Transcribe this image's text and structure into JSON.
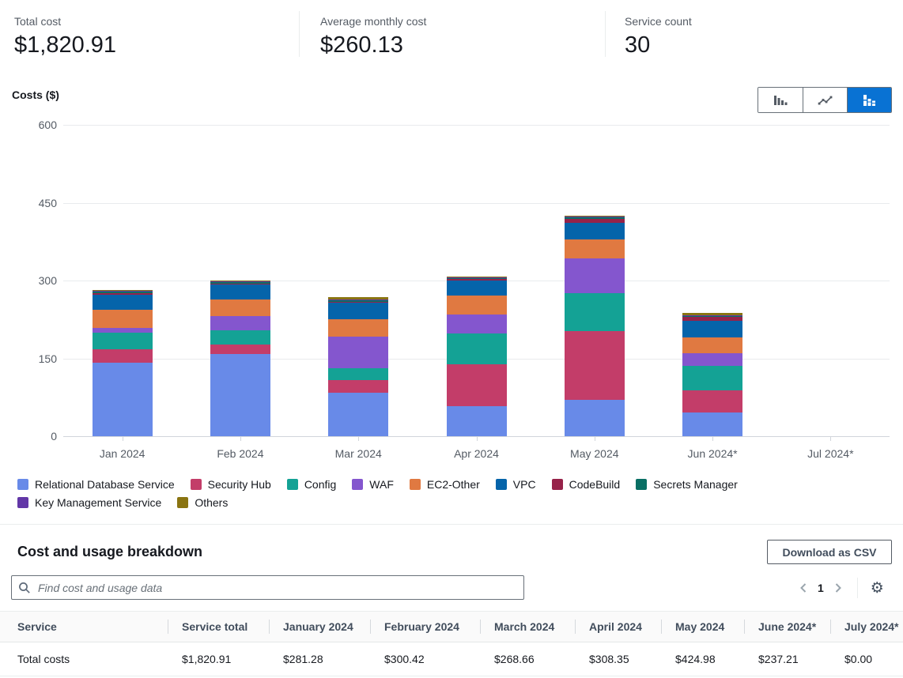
{
  "kpis": {
    "total": {
      "label": "Total cost",
      "value": "$1,820.91"
    },
    "average": {
      "label": "Average monthly cost",
      "value": "$260.13"
    },
    "count": {
      "label": "Service count",
      "value": "30"
    }
  },
  "chart": {
    "title": "Costs ($)",
    "selected_toggle": "stacked-bar",
    "accent_color": "#0972d3",
    "toggles": [
      {
        "name": "bar-chart",
        "selected": false
      },
      {
        "name": "line-chart",
        "selected": false
      },
      {
        "name": "stacked-bar-chart",
        "selected": true
      }
    ]
  },
  "chart_data": {
    "type": "bar",
    "stacked": true,
    "title": "Costs ($)",
    "xlabel": "",
    "ylabel": "Costs ($)",
    "ylim": [
      0,
      600
    ],
    "yticks": [
      0,
      150,
      300,
      450,
      600
    ],
    "grid": true,
    "legend_position": "bottom",
    "categories": [
      "Jan 2024",
      "Feb 2024",
      "Mar 2024",
      "Apr 2024",
      "May 2024",
      "Jun 2024*",
      "Jul 2024*"
    ],
    "totals": [
      281.28,
      300.42,
      268.66,
      308.35,
      424.98,
      237.21,
      0.0
    ],
    "series": [
      {
        "name": "Relational Database Service",
        "color": "#688ae8",
        "values": [
          142,
          159,
          84,
          58,
          70,
          46,
          0
        ]
      },
      {
        "name": "Security Hub",
        "color": "#c33d69",
        "values": [
          25,
          18,
          24,
          80,
          132,
          43,
          0
        ]
      },
      {
        "name": "Config",
        "color": "#14a295",
        "values": [
          33,
          27,
          23,
          60,
          73,
          47,
          0
        ]
      },
      {
        "name": "WAF",
        "color": "#8456ce",
        "values": [
          8,
          28,
          61,
          37,
          68,
          24,
          0
        ]
      },
      {
        "name": "EC2-Other",
        "color": "#e07941",
        "values": [
          35,
          31,
          34,
          36,
          36,
          31,
          0
        ]
      },
      {
        "name": "VPC",
        "color": "#0564aa",
        "values": [
          30,
          29,
          31,
          29,
          32,
          31,
          0
        ]
      },
      {
        "name": "CodeBuild",
        "color": "#962249",
        "values": [
          2.5,
          2.5,
          2.5,
          3,
          8.5,
          7.5,
          0
        ]
      },
      {
        "name": "Secrets Manager",
        "color": "#096f64",
        "values": [
          2.5,
          2.5,
          2,
          2,
          2,
          2,
          0
        ]
      },
      {
        "name": "Key Management Service",
        "color": "#6237a7",
        "values": [
          1.5,
          1.5,
          1.5,
          1.5,
          2,
          2,
          0
        ]
      },
      {
        "name": "Others",
        "color": "#8a7411",
        "values": [
          1.78,
          1.92,
          5.66,
          1.85,
          1.48,
          3.71,
          0
        ]
      }
    ]
  },
  "breakdown": {
    "title": "Cost and usage breakdown",
    "download_label": "Download as CSV",
    "search_placeholder": "Find cost and usage data",
    "page": "1",
    "columns": [
      "Service",
      "Service total",
      "January 2024",
      "February 2024",
      "March 2024",
      "April 2024",
      "May 2024",
      "June 2024*",
      "July 2024*"
    ],
    "rows": [
      [
        "Total costs",
        "$1,820.91",
        "$281.28",
        "$300.42",
        "$268.66",
        "$308.35",
        "$424.98",
        "$237.21",
        "$0.00"
      ]
    ]
  }
}
